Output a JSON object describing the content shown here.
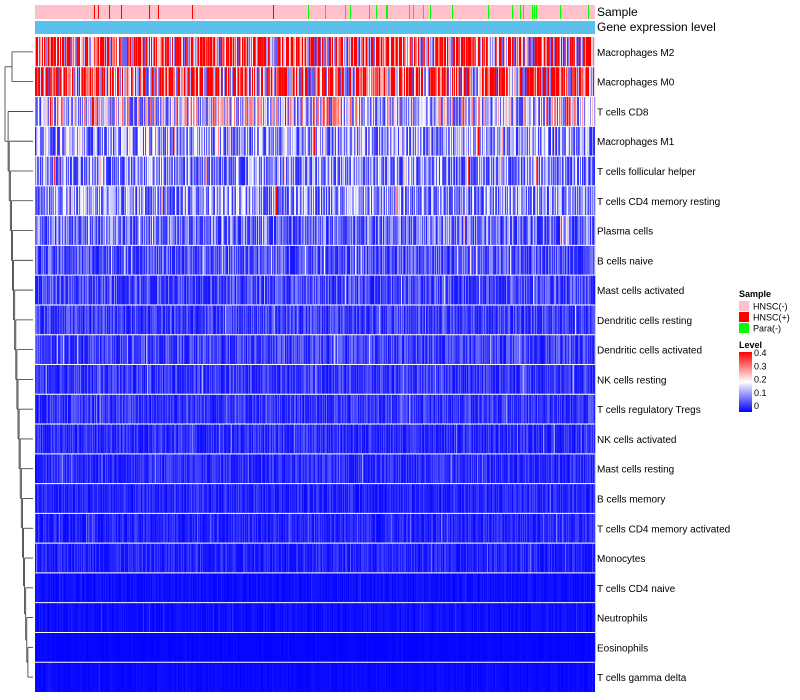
{
  "chart_data": {
    "type": "heatmap",
    "title": "",
    "annotation_labels": {
      "sample": "Sample",
      "level": "Gene expression level"
    },
    "rows": [
      {
        "label": "Macrophages M2",
        "mean": 0.22
      },
      {
        "label": "Macrophages M0",
        "mean": 0.2
      },
      {
        "label": "T cells CD8",
        "mean": 0.12
      },
      {
        "label": "Macrophages M1",
        "mean": 0.085
      },
      {
        "label": "T cells follicular helper",
        "mean": 0.075
      },
      {
        "label": "T cells CD4 memory resting",
        "mean": 0.08
      },
      {
        "label": "Plasma cells",
        "mean": 0.06
      },
      {
        "label": "B cells naive",
        "mean": 0.045
      },
      {
        "label": "Mast cells activated",
        "mean": 0.04
      },
      {
        "label": "Dendritic cells resting",
        "mean": 0.035
      },
      {
        "label": "Dendritic cells activated",
        "mean": 0.035
      },
      {
        "label": "NK cells resting",
        "mean": 0.03
      },
      {
        "label": "T cells regulatory  Tregs",
        "mean": 0.03
      },
      {
        "label": "NK cells activated",
        "mean": 0.025
      },
      {
        "label": "Mast cells resting",
        "mean": 0.025
      },
      {
        "label": "B cells memory",
        "mean": 0.02
      },
      {
        "label": "T cells CD4 memory activated",
        "mean": 0.02
      },
      {
        "label": "Monocytes",
        "mean": 0.02
      },
      {
        "label": "T cells CD4 naive",
        "mean": 0.008
      },
      {
        "label": "Neutrophils",
        "mean": 0.008
      },
      {
        "label": "Eosinophils",
        "mean": 0.003
      },
      {
        "label": "T cells gamma delta",
        "mean": 0.005
      }
    ],
    "sample_legend": {
      "title": "Sample",
      "items": [
        {
          "label": "HNSC(-)",
          "color": "#FFC0CB"
        },
        {
          "label": "HNSC(+)",
          "color": "#FF0000"
        },
        {
          "label": "Para(-)",
          "color": "#00FF00"
        }
      ]
    },
    "level_legend": {
      "title": "Level",
      "range": [
        0,
        0.4
      ],
      "ticks": [
        "0.4",
        "0.3",
        "0.2",
        "0.1",
        "0"
      ],
      "colors": [
        "#0000FF",
        "#FFFFFF",
        "#FF0000"
      ]
    },
    "level_annotation_color": "#5BC0EB",
    "n_samples": 560
  }
}
